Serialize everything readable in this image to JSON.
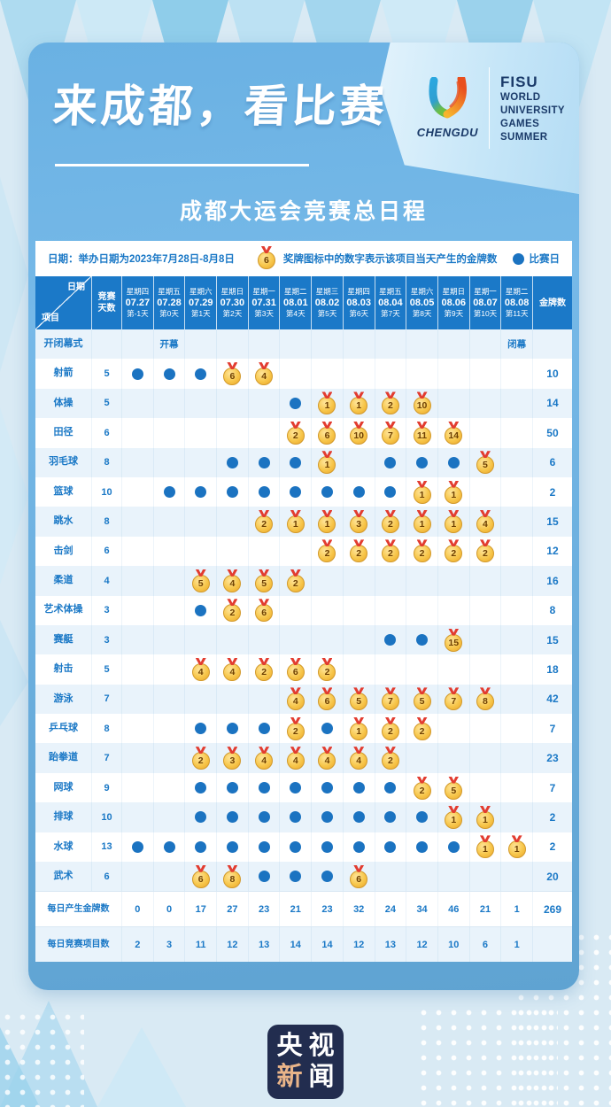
{
  "header": {
    "title": "来成都，看比赛",
    "subtitle": "成都大运会竞赛总日程",
    "logo": {
      "city": "CHENGDU",
      "org_lines": [
        "FISU",
        "WORLD",
        "UNIVERSITY",
        "GAMES",
        "SUMMER"
      ]
    }
  },
  "legend": {
    "date_note": "日期：举办日期为2023年7月28日-8月8日",
    "medal_icon_value": "6",
    "medal_note": "奖牌图标中的数字表示该项目当天产生的金牌数",
    "dot_note": "比赛日"
  },
  "table_headers": {
    "corner_top": "日期",
    "corner_bottom": "项目",
    "days_lines": [
      "竞赛",
      "天数"
    ],
    "gold": "金牌数"
  },
  "chart_data": {
    "type": "table",
    "title": "成都大运会竞赛总日程",
    "date_range": "2023年7月28日-8月8日",
    "columns": [
      {
        "weekday": "星期四",
        "date": "07.27",
        "day_label": "第-1天"
      },
      {
        "weekday": "星期五",
        "date": "07.28",
        "day_label": "第0天"
      },
      {
        "weekday": "星期六",
        "date": "07.29",
        "day_label": "第1天"
      },
      {
        "weekday": "星期日",
        "date": "07.30",
        "day_label": "第2天"
      },
      {
        "weekday": "星期一",
        "date": "07.31",
        "day_label": "第3天"
      },
      {
        "weekday": "星期二",
        "date": "08.01",
        "day_label": "第4天"
      },
      {
        "weekday": "星期三",
        "date": "08.02",
        "day_label": "第5天"
      },
      {
        "weekday": "星期四",
        "date": "08.03",
        "day_label": "第6天"
      },
      {
        "weekday": "星期五",
        "date": "08.04",
        "day_label": "第7天"
      },
      {
        "weekday": "星期六",
        "date": "08.05",
        "day_label": "第8天"
      },
      {
        "weekday": "星期日",
        "date": "08.06",
        "day_label": "第9天"
      },
      {
        "weekday": "星期一",
        "date": "08.07",
        "day_label": "第10天"
      },
      {
        "weekday": "星期二",
        "date": "08.08",
        "day_label": "第11天"
      }
    ],
    "ceremony_row": {
      "label": "开闭幕式",
      "open_text": "开幕",
      "open_col": 1,
      "close_text": "闭幕",
      "close_col": 12
    },
    "rows": [
      {
        "label": "射箭",
        "days": 5,
        "gold": 10,
        "cells": [
          "dot",
          "dot",
          "dot",
          6,
          4,
          null,
          null,
          null,
          null,
          null,
          null,
          null,
          null
        ]
      },
      {
        "label": "体操",
        "days": 5,
        "gold": 14,
        "cells": [
          null,
          null,
          null,
          null,
          null,
          "dot",
          1,
          1,
          2,
          10,
          null,
          null,
          null
        ]
      },
      {
        "label": "田径",
        "days": 6,
        "gold": 50,
        "cells": [
          null,
          null,
          null,
          null,
          null,
          2,
          6,
          10,
          7,
          11,
          14,
          null,
          null
        ]
      },
      {
        "label": "羽毛球",
        "days": 8,
        "gold": 6,
        "cells": [
          null,
          null,
          null,
          "dot",
          "dot",
          "dot",
          1,
          null,
          "dot",
          "dot",
          "dot",
          5,
          null
        ]
      },
      {
        "label": "篮球",
        "days": 10,
        "gold": 2,
        "cells": [
          null,
          "dot",
          "dot",
          "dot",
          "dot",
          "dot",
          "dot",
          "dot",
          "dot",
          1,
          1,
          null,
          null
        ]
      },
      {
        "label": "跳水",
        "days": 8,
        "gold": 15,
        "cells": [
          null,
          null,
          null,
          null,
          2,
          1,
          1,
          3,
          2,
          1,
          1,
          4,
          null
        ]
      },
      {
        "label": "击剑",
        "days": 6,
        "gold": 12,
        "cells": [
          null,
          null,
          null,
          null,
          null,
          null,
          2,
          2,
          2,
          2,
          2,
          2,
          null
        ]
      },
      {
        "label": "柔道",
        "days": 4,
        "gold": 16,
        "cells": [
          null,
          null,
          5,
          4,
          5,
          2,
          null,
          null,
          null,
          null,
          null,
          null,
          null
        ]
      },
      {
        "label": "艺术体操",
        "days": 3,
        "gold": 8,
        "cells": [
          null,
          null,
          "dot",
          2,
          6,
          null,
          null,
          null,
          null,
          null,
          null,
          null,
          null
        ]
      },
      {
        "label": "赛艇",
        "days": 3,
        "gold": 15,
        "cells": [
          null,
          null,
          null,
          null,
          null,
          null,
          null,
          null,
          "dot",
          "dot",
          15,
          null,
          null
        ]
      },
      {
        "label": "射击",
        "days": 5,
        "gold": 18,
        "cells": [
          null,
          null,
          4,
          4,
          2,
          6,
          2,
          null,
          null,
          null,
          null,
          null,
          null
        ]
      },
      {
        "label": "游泳",
        "days": 7,
        "gold": 42,
        "cells": [
          null,
          null,
          null,
          null,
          null,
          4,
          6,
          5,
          7,
          5,
          7,
          8,
          null
        ]
      },
      {
        "label": "乒乓球",
        "days": 8,
        "gold": 7,
        "cells": [
          null,
          null,
          "dot",
          "dot",
          "dot",
          2,
          "dot",
          1,
          2,
          2,
          null,
          null,
          null
        ]
      },
      {
        "label": "跆拳道",
        "days": 7,
        "gold": 23,
        "cells": [
          null,
          null,
          2,
          3,
          4,
          4,
          4,
          4,
          2,
          null,
          null,
          null,
          null
        ]
      },
      {
        "label": "网球",
        "days": 9,
        "gold": 7,
        "cells": [
          null,
          null,
          "dot",
          "dot",
          "dot",
          "dot",
          "dot",
          "dot",
          "dot",
          2,
          5,
          null,
          null
        ]
      },
      {
        "label": "排球",
        "days": 10,
        "gold": 2,
        "cells": [
          null,
          null,
          "dot",
          "dot",
          "dot",
          "dot",
          "dot",
          "dot",
          "dot",
          "dot",
          1,
          1,
          null
        ]
      },
      {
        "label": "水球",
        "days": 13,
        "gold": 2,
        "cells": [
          "dot",
          "dot",
          "dot",
          "dot",
          "dot",
          "dot",
          "dot",
          "dot",
          "dot",
          "dot",
          "dot",
          1,
          1
        ]
      },
      {
        "label": "武术",
        "days": 6,
        "gold": 20,
        "cells": [
          null,
          null,
          6,
          8,
          "dot",
          "dot",
          "dot",
          6,
          null,
          null,
          null,
          null,
          null
        ]
      }
    ],
    "summary_rows": [
      {
        "label": "每日产生金牌数",
        "values": [
          0,
          0,
          17,
          27,
          23,
          21,
          23,
          32,
          24,
          34,
          46,
          21,
          1
        ],
        "total": 269
      },
      {
        "label": "每日竞赛项目数",
        "values": [
          2,
          3,
          11,
          12,
          13,
          14,
          14,
          12,
          13,
          12,
          10,
          6,
          1
        ],
        "total": null
      }
    ]
  },
  "footer": {
    "logo_chars": [
      {
        "char": "央",
        "color": "#ffffff"
      },
      {
        "char": "视",
        "color": "#ffffff"
      },
      {
        "char": "新",
        "color": "#e9b489"
      },
      {
        "char": "闻",
        "color": "#ffffff"
      }
    ]
  },
  "colors": {
    "accent_blue": "#1b79c8",
    "card_blue": "#6bb1e2",
    "row_alt": "#e9f3fb",
    "medal_gold": "#f6c245",
    "ribbon_red": "#e23c30",
    "dot_blue": "#1b73c1",
    "navy": "#1a3a69",
    "footer_navy": "#222d4f",
    "highlight_tan": "#e9b489"
  }
}
